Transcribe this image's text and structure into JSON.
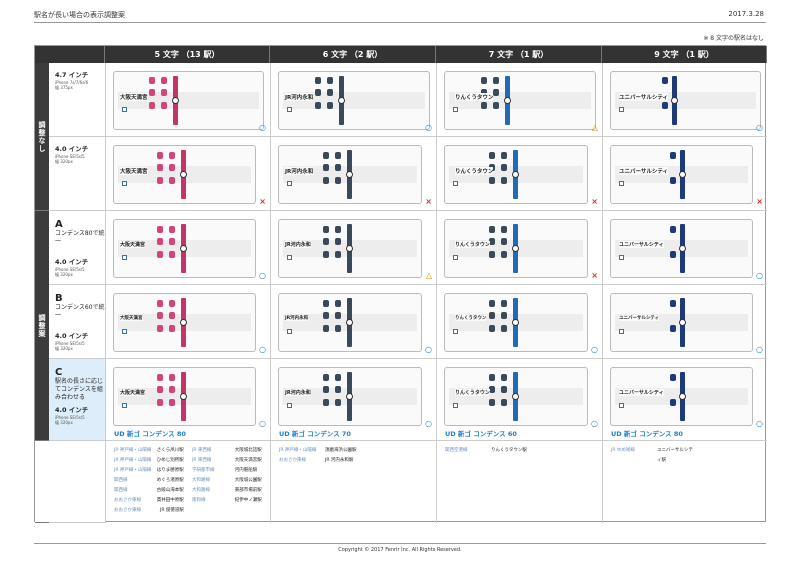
{
  "header": {
    "title": "駅名が長い場合の表示調整案",
    "date": "2017.3.28",
    "note": "※ 8 文字の駅名はなし"
  },
  "columns": [
    {
      "label": "5 文字 （13 駅）",
      "station": "大阪天満宮",
      "bar_color": "#c4346a"
    },
    {
      "label": "6 文字 （2 駅）",
      "station": "JR河内永和",
      "bar_color": "#3a4a5a"
    },
    {
      "label": "7 文字 （1 駅）",
      "station": "りんくうタウン",
      "bar_color": "#2469b3"
    },
    {
      "label": "9 文字 （1 駅）",
      "station": "ユニバーサルシティ",
      "bar_color": "#1f3a78"
    }
  ],
  "categories": [
    {
      "label": "調整なし"
    },
    {
      "label": "調整案"
    }
  ],
  "rows": [
    {
      "letter": "",
      "desc": "",
      "size": "4.7 インチ",
      "device": "iPhone 7s/7/6s/6",
      "width": "幅 375px"
    },
    {
      "letter": "",
      "desc": "",
      "size": "4.0 インチ",
      "device": "iPhone SE/5s/5",
      "width": "幅 320px"
    },
    {
      "letter": "A",
      "desc": "コンデンス80で統一",
      "size": "4.0 インチ",
      "device": "iPhone SE/5s/5",
      "width": "幅 320px"
    },
    {
      "letter": "B",
      "desc": "コンデンス60で統一",
      "size": "4.0 インチ",
      "device": "iPhone SE/5s/5",
      "width": "幅 320px"
    },
    {
      "letter": "C",
      "desc": "駅名の長さに応じてコンデンスを組み合わせる",
      "size": "4.0 インチ",
      "device": "iPhone SE/5s/5",
      "width": "幅 320px"
    }
  ],
  "marks": [
    [
      "○",
      "○",
      "△",
      "○"
    ],
    [
      "×",
      "×",
      "×",
      "×"
    ],
    [
      "○",
      "△",
      "×",
      "○"
    ],
    [
      "○",
      "○",
      "○",
      "○"
    ],
    [
      "○",
      "○",
      "○",
      "○"
    ]
  ],
  "colors": {
    "ok": "#2a82d0",
    "tri": "#e88a00",
    "x": "#d02b2b",
    "accent": "#1a7fd4"
  },
  "font_labels": [
    "UD 新ゴ コンデンス 80",
    "UD 新ゴ コンデンス 70",
    "UD 新ゴ コンデンス 60",
    "UD 新ゴ コンデンス 80"
  ],
  "footer": [
    {
      "pairs": [
        [
          "JR 神戸線・山陽線",
          "さくら夙川駅",
          "JR 東西線",
          "大阪城北詰駅"
        ],
        [
          "JR 神戸線・山陽線",
          "ひめじ別所駅",
          "JR 東西線",
          "大阪天満宮駅"
        ],
        [
          "JR 神戸線・山陽線",
          "はりま勝原駅",
          "学研都市線",
          "河内磐船駅"
        ],
        [
          "関西線",
          "めぐろ渚原駅",
          "大和路線",
          "大阪城公園駅"
        ],
        [
          "関西線",
          "古殿山海本駅",
          "大和路線",
          "東部市場前駅"
        ],
        [
          "おおさか東線",
          "貫井田中原駅",
          "阪和線",
          "紀伊中ノ瀬駅"
        ],
        [
          "おおさか東線",
          "JR 俊徳道駅",
          "",
          ""
        ]
      ]
    },
    {
      "pairs": [
        [
          "JR 神戸線・山陽線",
          "須磨海浜公園駅"
        ],
        [
          "おおさか東線",
          "JR 河内永和駅"
        ]
      ]
    },
    {
      "pairs": [
        [
          "関西空港線",
          "りんくうタウン駅"
        ]
      ]
    },
    {
      "pairs": [
        [
          "JR ゆめ咲線",
          "ユニバーサルシティ駅"
        ]
      ]
    }
  ],
  "copyright": "Copyright © 2017 Fenrir Inc. All Rights Reserved."
}
